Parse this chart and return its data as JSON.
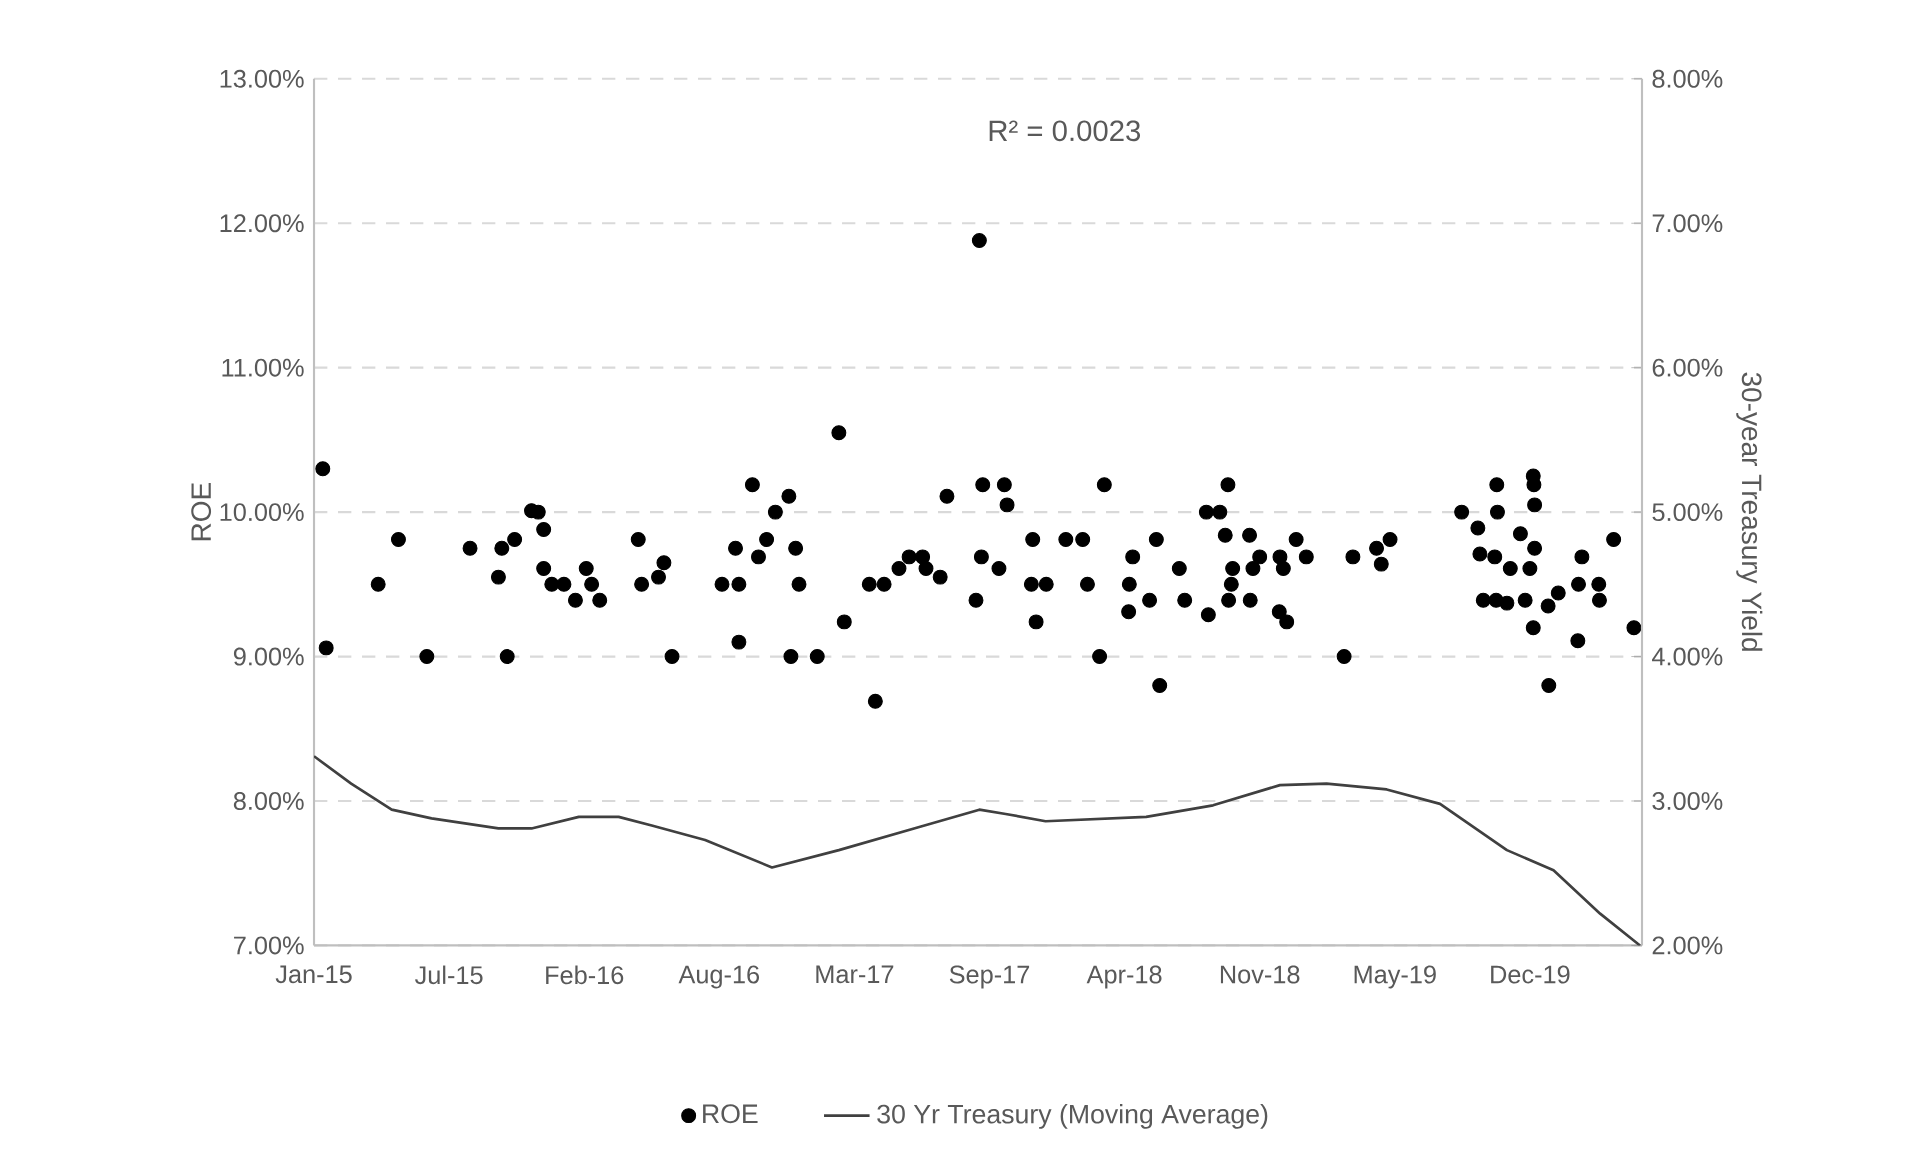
{
  "chart_data": {
    "type": "scatter",
    "annotations": [
      "R² = 0.0023"
    ],
    "ylabel": "ROE",
    "y2label": "30-year Treasury Yield",
    "xlim": [
      "2015-01-01",
      "2020-05-20"
    ],
    "xticks": [
      {
        "value": "2015-01-01",
        "label": "Jan-15"
      },
      {
        "value": "2015-07-20",
        "label": "Jul-15"
      },
      {
        "value": "2016-02-05",
        "label": "Feb-16"
      },
      {
        "value": "2016-08-23",
        "label": "Aug-16"
      },
      {
        "value": "2017-03-11",
        "label": "Mar-17"
      },
      {
        "value": "2017-09-27",
        "label": "Sep-17"
      },
      {
        "value": "2018-04-15",
        "label": "Apr-18"
      },
      {
        "value": "2018-11-01",
        "label": "Nov-18"
      },
      {
        "value": "2019-05-20",
        "label": "May-19"
      },
      {
        "value": "2019-12-06",
        "label": "Dec-19"
      }
    ],
    "ylim": [
      7,
      13
    ],
    "yticks": [
      {
        "value": 7,
        "label": "7.00%"
      },
      {
        "value": 8,
        "label": "8.00%"
      },
      {
        "value": 9,
        "label": "9.00%"
      },
      {
        "value": 10,
        "label": "10.00%"
      },
      {
        "value": 11,
        "label": "11.00%"
      },
      {
        "value": 12,
        "label": "12.00%"
      },
      {
        "value": 13,
        "label": "13.00%"
      }
    ],
    "y2lim": [
      2,
      8
    ],
    "y2ticks": [
      {
        "value": 2,
        "label": "2.00%"
      },
      {
        "value": 3,
        "label": "3.00%"
      },
      {
        "value": 4,
        "label": "4.00%"
      },
      {
        "value": 5,
        "label": "5.00%"
      },
      {
        "value": 6,
        "label": "6.00%"
      },
      {
        "value": 7,
        "label": "7.00%"
      },
      {
        "value": 8,
        "label": "8.00%"
      }
    ],
    "grid": "y",
    "legend": "bottom",
    "series": [
      {
        "name": "ROE",
        "color": "#000000",
        "marker": "circle",
        "x": [
          "2015-01-14",
          "2015-01-19",
          "2015-04-06",
          "2015-05-06",
          "2015-06-17",
          "2015-08-20",
          "2015-10-01",
          "2015-10-06",
          "2015-10-14",
          "2015-10-25",
          "2015-11-19",
          "2015-11-29",
          "2015-12-07",
          "2015-12-07",
          "2015-12-19",
          "2016-01-06",
          "2016-01-23",
          "2016-02-08",
          "2016-02-16",
          "2016-02-28",
          "2016-04-25",
          "2016-04-30",
          "2016-05-25",
          "2016-06-02",
          "2016-06-14",
          "2016-08-27",
          "2016-09-16",
          "2016-09-21",
          "2016-09-21",
          "2016-10-11",
          "2016-10-20",
          "2016-11-01",
          "2016-11-14",
          "2016-12-04",
          "2016-12-07",
          "2016-12-14",
          "2016-12-19",
          "2017-01-15",
          "2017-02-16",
          "2017-02-24",
          "2017-04-02",
          "2017-04-11",
          "2017-04-24",
          "2017-05-16",
          "2017-05-31",
          "2017-06-20",
          "2017-06-25",
          "2017-07-16",
          "2017-07-26",
          "2017-09-07",
          "2017-09-12",
          "2017-09-15",
          "2017-09-17",
          "2017-10-11",
          "2017-10-19",
          "2017-10-23",
          "2017-11-28",
          "2017-11-30",
          "2017-12-05",
          "2017-12-20",
          "2018-01-18",
          "2018-02-12",
          "2018-02-19",
          "2018-03-09",
          "2018-03-16",
          "2018-04-21",
          "2018-04-22",
          "2018-04-27",
          "2018-05-22",
          "2018-06-01",
          "2018-06-06",
          "2018-07-05",
          "2018-07-13",
          "2018-08-14",
          "2018-08-17",
          "2018-09-03",
          "2018-09-11",
          "2018-09-15",
          "2018-09-16",
          "2018-09-20",
          "2018-09-22",
          "2018-10-17",
          "2018-10-18",
          "2018-10-22",
          "2018-11-01",
          "2018-11-30",
          "2018-12-01",
          "2018-12-06",
          "2018-12-11",
          "2018-12-25",
          "2019-01-09",
          "2019-03-06",
          "2019-03-19",
          "2019-04-23",
          "2019-04-30",
          "2019-05-13",
          "2019-08-27",
          "2019-09-20",
          "2019-09-23",
          "2019-09-28",
          "2019-10-15",
          "2019-10-17",
          "2019-10-18",
          "2019-10-19",
          "2019-11-02",
          "2019-11-07",
          "2019-11-22",
          "2019-11-29",
          "2019-12-06",
          "2019-12-11",
          "2019-12-11",
          "2019-12-12",
          "2019-12-13",
          "2019-12-13",
          "2020-01-02",
          "2020-01-03",
          "2020-01-17",
          "2020-02-15",
          "2020-02-16",
          "2020-02-21",
          "2020-03-17",
          "2020-03-18",
          "2020-04-08",
          "2020-05-08"
        ],
        "values": [
          10.3,
          9.06,
          9.5,
          9.81,
          9.0,
          9.75,
          9.55,
          9.75,
          9.0,
          9.81,
          10.01,
          10.0,
          9.88,
          9.61,
          9.5,
          9.5,
          9.39,
          9.61,
          9.5,
          9.39,
          9.81,
          9.5,
          9.55,
          9.65,
          9.0,
          9.5,
          9.75,
          9.5,
          9.1,
          10.19,
          9.69,
          9.81,
          10.0,
          10.11,
          9.0,
          9.75,
          9.5,
          9.0,
          10.55,
          9.24,
          9.5,
          8.69,
          9.5,
          9.61,
          9.69,
          9.69,
          9.61,
          9.55,
          10.11,
          9.39,
          11.88,
          9.69,
          10.19,
          9.61,
          10.19,
          10.05,
          9.5,
          9.81,
          9.24,
          9.5,
          9.81,
          9.81,
          9.5,
          9.0,
          10.19,
          9.31,
          9.5,
          9.69,
          9.39,
          9.81,
          8.8,
          9.61,
          9.39,
          10.0,
          9.29,
          10.0,
          9.84,
          10.19,
          9.39,
          9.5,
          9.61,
          9.84,
          9.39,
          9.61,
          9.69,
          9.31,
          9.69,
          9.61,
          9.24,
          9.81,
          9.69,
          9.0,
          9.69,
          9.75,
          9.64,
          9.81,
          10.0,
          9.89,
          9.71,
          9.39,
          9.69,
          9.39,
          10.19,
          10.0,
          9.37,
          9.61,
          9.85,
          9.39,
          9.61,
          10.25,
          9.2,
          10.19,
          10.05,
          9.75,
          9.35,
          8.8,
          9.44,
          9.11,
          9.5,
          9.69,
          9.5,
          9.39,
          9.81,
          9.2
        ]
      },
      {
        "name": "30 Yr Treasury (Moving Average)",
        "type": "line",
        "axis": "y2",
        "color": "#404040",
        "marker": "none",
        "line_style": "solid",
        "x": [
          "2015-01-01",
          "2015-02-25",
          "2015-04-26",
          "2015-06-24",
          "2015-10-01",
          "2015-11-19",
          "2016-01-28",
          "2016-03-27",
          "2016-05-15",
          "2016-08-02",
          "2016-11-09",
          "2017-02-16",
          "2017-06-15",
          "2017-09-12",
          "2017-10-21",
          "2017-12-19",
          "2018-05-17",
          "2018-08-24",
          "2018-12-01",
          "2019-02-08",
          "2019-05-08",
          "2019-07-26",
          "2019-11-02",
          "2020-01-10",
          "2020-03-19",
          "2020-05-17"
        ],
        "values": [
          3.31,
          3.12,
          2.94,
          2.88,
          2.81,
          2.81,
          2.89,
          2.89,
          2.83,
          2.73,
          2.54,
          2.66,
          2.82,
          2.94,
          2.91,
          2.86,
          2.89,
          2.97,
          3.11,
          3.12,
          3.08,
          2.98,
          2.66,
          2.52,
          2.22,
          2.0
        ]
      }
    ]
  }
}
